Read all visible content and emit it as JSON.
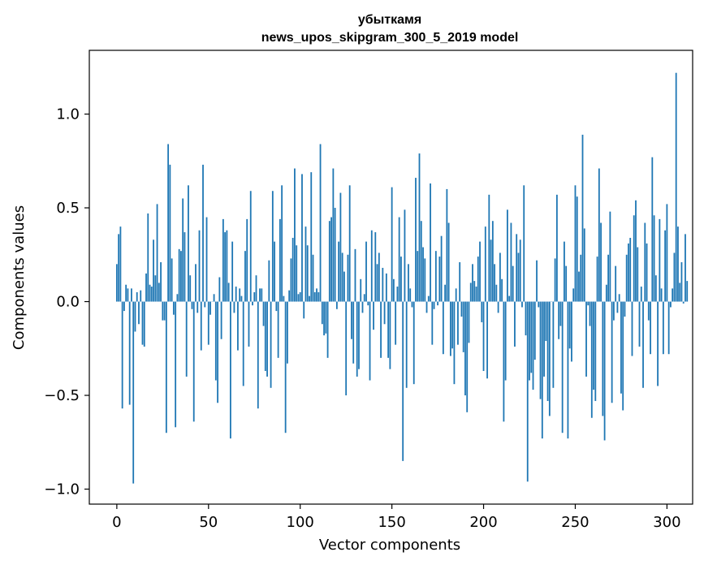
{
  "chart_data": {
    "type": "bar",
    "title": "убыткамя",
    "subtitle": "news_upos_skipgram_300_5_2019 model",
    "xlabel": "Vector components",
    "ylabel": "Components values",
    "xlim": [
      -15,
      314
    ],
    "ylim": [
      -1.08,
      1.34
    ],
    "xticks": [
      0,
      50,
      100,
      150,
      200,
      250,
      300
    ],
    "yticks": [
      -1.0,
      -0.5,
      0.0,
      0.5,
      1.0
    ],
    "ytick_labels": [
      "−1.0",
      "−0.5",
      "0.0",
      "0.5",
      "1.0"
    ],
    "grid": false,
    "legend": "none",
    "bar_color": "#1f77b4",
    "values": [
      0.2,
      0.36,
      0.4,
      -0.57,
      -0.05,
      0.09,
      0.07,
      -0.55,
      0.07,
      -0.97,
      -0.16,
      0.05,
      -0.12,
      0.06,
      -0.23,
      -0.24,
      0.15,
      0.47,
      0.09,
      0.08,
      0.33,
      0.14,
      0.52,
      0.1,
      0.21,
      -0.1,
      -0.1,
      -0.7,
      0.84,
      0.73,
      0.23,
      -0.07,
      -0.67,
      0.04,
      0.28,
      0.27,
      0.55,
      0.37,
      -0.4,
      0.62,
      0.14,
      -0.04,
      -0.64,
      0.2,
      -0.06,
      0.38,
      -0.26,
      0.73,
      -0.03,
      0.45,
      -0.23,
      -0.07,
      0.0,
      0.04,
      -0.42,
      -0.54,
      0.13,
      -0.2,
      0.44,
      0.37,
      0.38,
      0.1,
      -0.73,
      0.32,
      -0.06,
      0.08,
      -0.26,
      0.07,
      0.03,
      -0.45,
      0.27,
      0.44,
      -0.24,
      0.59,
      -0.02,
      0.05,
      0.14,
      -0.57,
      0.07,
      0.07,
      -0.13,
      -0.37,
      -0.4,
      0.22,
      -0.46,
      0.59,
      0.32,
      -0.05,
      -0.3,
      0.44,
      0.62,
      0.03,
      -0.7,
      -0.33,
      0.06,
      0.23,
      0.34,
      0.71,
      0.3,
      0.04,
      0.05,
      0.68,
      -0.09,
      0.4,
      0.3,
      0.03,
      0.69,
      0.25,
      0.05,
      0.07,
      0.05,
      0.84,
      -0.12,
      -0.18,
      -0.17,
      -0.3,
      0.43,
      0.45,
      0.71,
      0.5,
      -0.04,
      0.32,
      0.58,
      0.26,
      0.16,
      -0.5,
      0.25,
      0.62,
      -0.2,
      -0.33,
      0.28,
      -0.4,
      -0.36,
      0.12,
      -0.06,
      0.04,
      0.32,
      -0.02,
      -0.42,
      0.38,
      -0.15,
      0.37,
      0.2,
      0.26,
      -0.3,
      0.18,
      -0.12,
      0.15,
      -0.3,
      -0.36,
      0.61,
      0.12,
      -0.23,
      0.08,
      0.45,
      0.24,
      -0.85,
      0.49,
      -0.46,
      0.2,
      0.07,
      -0.03,
      -0.44,
      0.66,
      0.27,
      0.79,
      0.43,
      0.29,
      0.23,
      -0.06,
      0.03,
      0.63,
      -0.23,
      -0.04,
      0.27,
      -0.02,
      0.24,
      0.35,
      -0.28,
      0.09,
      0.6,
      0.42,
      -0.29,
      -0.25,
      -0.44,
      0.07,
      -0.23,
      0.21,
      -0.08,
      -0.27,
      -0.5,
      -0.59,
      -0.22,
      0.1,
      0.2,
      0.11,
      0.08,
      0.24,
      0.32,
      -0.11,
      -0.37,
      0.4,
      -0.41,
      0.57,
      0.33,
      0.43,
      0.2,
      0.09,
      -0.06,
      0.26,
      0.12,
      -0.64,
      -0.42,
      0.49,
      0.03,
      0.42,
      0.19,
      -0.24,
      0.36,
      0.26,
      0.33,
      -0.03,
      0.62,
      -0.18,
      -0.96,
      -0.42,
      -0.38,
      -0.47,
      -0.31,
      0.22,
      -0.03,
      -0.52,
      -0.73,
      -0.4,
      -0.21,
      -0.53,
      -0.61,
      0.0,
      -0.46,
      0.23,
      0.57,
      -0.2,
      -0.13,
      -0.7,
      0.32,
      0.19,
      -0.73,
      -0.25,
      -0.32,
      0.07,
      0.62,
      0.56,
      0.16,
      0.25,
      0.89,
      0.39,
      -0.4,
      -0.02,
      -0.13,
      -0.62,
      -0.47,
      -0.53,
      0.24,
      0.71,
      0.42,
      -0.61,
      -0.74,
      0.09,
      0.25,
      0.48,
      -0.54,
      -0.1,
      0.19,
      -0.06,
      0.04,
      -0.49,
      -0.58,
      -0.08,
      0.25,
      0.31,
      0.34,
      -0.29,
      0.46,
      0.54,
      0.29,
      -0.24,
      0.08,
      -0.46,
      0.42,
      0.31,
      -0.1,
      -0.28,
      0.77,
      0.46,
      0.14,
      -0.45,
      0.44,
      0.07,
      -0.28,
      0.38,
      0.52,
      -0.28,
      -0.03,
      0.07,
      0.26,
      1.22,
      0.4,
      0.1,
      0.21,
      -0.01,
      0.36,
      0.11
    ]
  }
}
